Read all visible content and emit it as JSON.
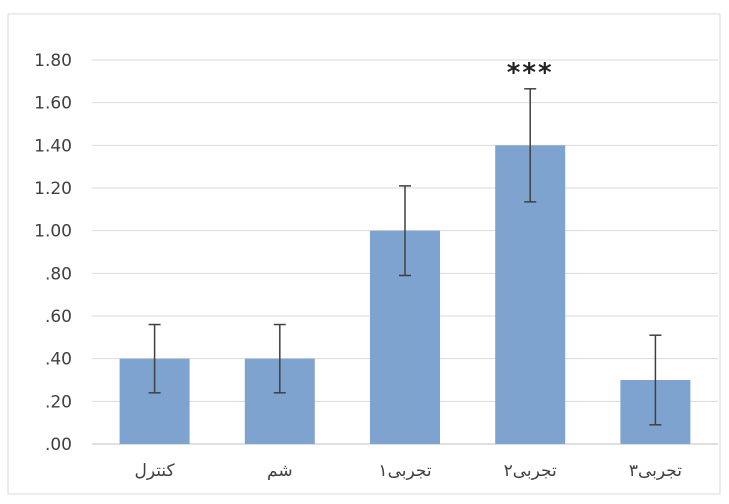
{
  "chart_data": {
    "type": "bar",
    "title": "",
    "xlabel": "",
    "ylabel": "",
    "categories": [
      "کنترل",
      "شم",
      "تجربی۱",
      "تجربی۲",
      "تجربی۳"
    ],
    "values": [
      0.4,
      0.4,
      1.0,
      1.4,
      0.3
    ],
    "error": [
      0.16,
      0.16,
      0.21,
      0.265,
      0.21
    ],
    "ylim": [
      0,
      1.8
    ],
    "yticks": [
      0,
      0.2,
      0.4,
      0.6,
      0.8,
      1.0,
      1.2,
      1.4,
      1.6,
      1.8
    ],
    "ytick_labels": [
      ".00",
      ".20",
      ".40",
      ".60",
      ".80",
      "1.00",
      "1.20",
      "1.40",
      "1.60",
      "1.80"
    ],
    "annotations": [
      {
        "category_index": 3,
        "text": "***"
      }
    ],
    "grid": true,
    "bar_color": "#7ea3cf"
  }
}
